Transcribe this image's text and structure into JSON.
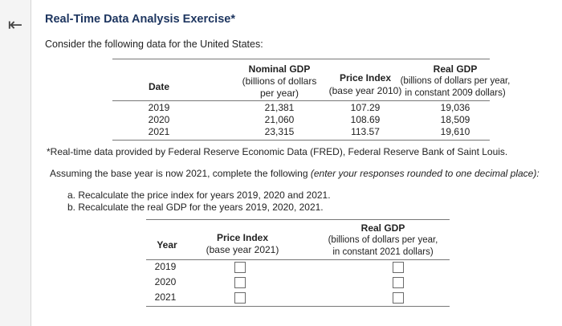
{
  "nav": {
    "back_icon": "collapse-left-arrow-icon"
  },
  "exercise": {
    "title": "Real-Time Data Analysis Exercise*",
    "intro": "Consider the following data for the United States:",
    "footnote": "*Real-time data provided by Federal Reserve Economic Data (FRED), Federal Reserve Bank of Saint Louis.",
    "assumption_main": "Assuming the base year is now 2021, complete the following ",
    "assumption_italic": "(enter your responses rounded to one decimal place):",
    "tasks": [
      "a. Recalculate the price index for years 2019, 2020 and 2021.",
      "b. Recalculate the real GDP for the years 2019, 2020, 2021."
    ]
  },
  "given_table": {
    "headers": {
      "date": "Date",
      "nominal_line1": "Nominal GDP",
      "nominal_line2": "(billions of dollars",
      "nominal_line3": "per year)",
      "price_line1": "Price Index",
      "price_line2": "(base year 2010)",
      "real_line1": "Real GDP",
      "real_line2": "(billions of dollars per year,",
      "real_line3": "in constant 2009 dollars)"
    },
    "rows": [
      {
        "date": "2019",
        "nominal": "21,381",
        "price": "107.29",
        "real": "19,036"
      },
      {
        "date": "2020",
        "nominal": "21,060",
        "price": "108.69",
        "real": "18,509"
      },
      {
        "date": "2021",
        "nominal": "23,315",
        "price": "113.57",
        "real": "19,610"
      }
    ]
  },
  "answer_table": {
    "headers": {
      "year": "Year",
      "price_line1": "Price Index",
      "price_line2": "(base year 2021)",
      "real_line1": "Real GDP",
      "real_line2": "(billions of dollars per year,",
      "real_line3": "in constant 2021 dollars)"
    },
    "rows": [
      {
        "year": "2019",
        "price_input": "",
        "real_input": ""
      },
      {
        "year": "2020",
        "price_input": "",
        "real_input": ""
      },
      {
        "year": "2021",
        "price_input": "",
        "real_input": ""
      }
    ]
  }
}
